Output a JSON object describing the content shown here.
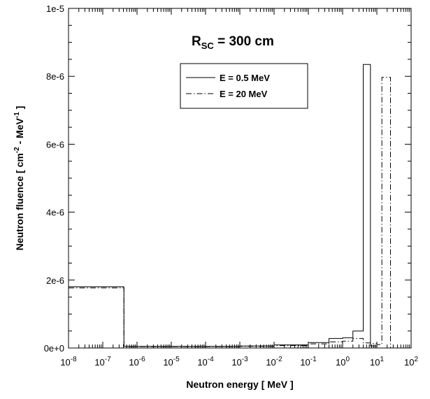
{
  "chart_data": {
    "type": "line",
    "title": "",
    "xlabel": "Neutron energy  [  MeV  ]",
    "ylabel": "Neutron fluence  [  cm",
    "ylabel_sup1": "-2",
    "ylabel_mid": " - MeV",
    "ylabel_sup2": "-1",
    "ylabel_end": "  ]",
    "x_scale": "log",
    "xlim": [
      1e-08,
      100
    ],
    "ylim": [
      0,
      1e-05
    ],
    "x_tick_labels": [
      {
        "base": "10",
        "exp": "-8",
        "value": 1e-08
      },
      {
        "base": "10",
        "exp": "-7",
        "value": 1e-07
      },
      {
        "base": "10",
        "exp": "-6",
        "value": 1e-06
      },
      {
        "base": "10",
        "exp": "-5",
        "value": 1e-05
      },
      {
        "base": "10",
        "exp": "-4",
        "value": 0.0001
      },
      {
        "base": "10",
        "exp": "-3",
        "value": 0.001
      },
      {
        "base": "10",
        "exp": "-2",
        "value": 0.01
      },
      {
        "base": "10",
        "exp": "-1",
        "value": 0.1
      },
      {
        "base": "10",
        "exp": "0",
        "value": 1
      },
      {
        "base": "10",
        "exp": "1",
        "value": 10
      },
      {
        "base": "10",
        "exp": "2",
        "value": 100
      }
    ],
    "y_tick_labels": [
      {
        "label": "0e+0",
        "value": 0
      },
      {
        "label": "2e-6",
        "value": 2e-06
      },
      {
        "label": "4e-6",
        "value": 4e-06
      },
      {
        "label": "6e-6",
        "value": 6e-06
      },
      {
        "label": "8e-6",
        "value": 8e-06
      },
      {
        "label": "1e-5",
        "value": 1e-05
      }
    ],
    "annotation": {
      "main": "R",
      "sub": "SC",
      "rest": " = 300 cm"
    },
    "legend_position": "top-right",
    "grid": false,
    "series": [
      {
        "name": "E = 0.5 MeV",
        "style": "solid",
        "bin_edges": [
          1e-08,
          4.14e-07,
          1e-06,
          1e-05,
          0.0001,
          0.001,
          0.01,
          0.1,
          0.4,
          1,
          2,
          4,
          6.5,
          10
        ],
        "values": [
          1.8e-06,
          5e-08,
          5e-08,
          5e-08,
          5e-08,
          6e-08,
          9e-08,
          1.6e-07,
          2.8e-07,
          3e-07,
          5e-07,
          8.35e-06,
          6e-08
        ]
      },
      {
        "name": "E = 20 MeV",
        "style": "dashdot",
        "bin_edges": [
          1e-08,
          4.14e-07,
          1e-06,
          1e-05,
          0.0001,
          0.001,
          0.01,
          0.1,
          0.4,
          1,
          2,
          4,
          6.5,
          10,
          14,
          25
        ],
        "values": [
          1.77e-06,
          4e-08,
          4e-08,
          4e-08,
          4e-08,
          5e-08,
          7e-08,
          1.2e-07,
          1.8e-07,
          2e-07,
          2.8e-07,
          1.5e-07,
          1.3e-07,
          1e-07,
          7.97e-06
        ]
      }
    ]
  }
}
